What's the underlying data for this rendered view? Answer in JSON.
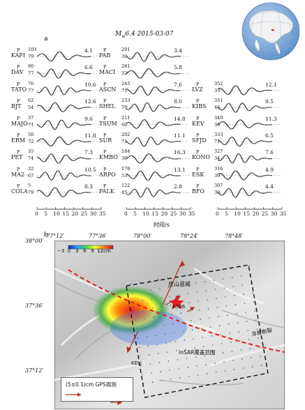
{
  "panel_a": {
    "label": "a",
    "title_prefix": "M",
    "title_sub": "w",
    "title_rest": "6.4 2015-03-07",
    "p_label": "P",
    "columns": [
      [
        {
          "code": "KAPI",
          "az": "103",
          "dist": "79",
          "amp": "4.1"
        },
        {
          "code": "DAV",
          "az": "90",
          "dist": "77",
          "amp": "6.6"
        },
        {
          "code": "TATO",
          "az": "76",
          "dist": "77",
          "amp": "10.6"
        },
        {
          "code": "BJT",
          "az": "62",
          "dist": "54",
          "amp": "12.6"
        },
        {
          "code": "MAJO",
          "az": "37",
          "dist": "71",
          "amp": "9.6"
        },
        {
          "code": "ERM",
          "az": "50",
          "dist": "72",
          "amp": "11.8"
        },
        {
          "code": "PET",
          "az": "35",
          "dist": "74",
          "amp": "7.3"
        },
        {
          "code": "MA2",
          "az": "32",
          "dist": "67",
          "amp": "10.5"
        },
        {
          "code": "COLA",
          "az": "5",
          "dist": "79",
          "amp": "8.3"
        }
      ],
      [
        {
          "code": "PAB",
          "az": "291",
          "dist": "39",
          "amp": "3.4"
        },
        {
          "code": "MACI",
          "az": "281",
          "dist": "32",
          "amp": "5.8"
        },
        {
          "code": "ASCN",
          "az": "245",
          "dist": "71",
          "amp": "7.6"
        },
        {
          "code": "SHEL",
          "az": "233",
          "dist": "70",
          "amp": "8.0"
        },
        {
          "code": "TSUM",
          "az": "211",
          "dist": "60",
          "amp": "14.8"
        },
        {
          "code": "SUR",
          "az": "202",
          "dist": "71",
          "amp": "11.1"
        },
        {
          "code": "KMBO",
          "az": "184",
          "dist": "36",
          "amp": "16.3"
        },
        {
          "code": "ARPO",
          "az": "178",
          "dist": "53",
          "amp": "13.1"
        },
        {
          "code": "PALK",
          "az": "122",
          "dist": "45",
          "amp": "2.8"
        }
      ],
      [
        {
          "code": "LVZ",
          "az": "352",
          "dist": "33",
          "amp": "12.1"
        },
        {
          "code": "KIBS",
          "az": "351",
          "dist": "46",
          "amp": "9.5"
        },
        {
          "code": "KEV",
          "az": "349",
          "dist": "36",
          "amp": "11.3"
        },
        {
          "code": "SFJD",
          "az": "333",
          "dist": "71",
          "amp": "6.5"
        },
        {
          "code": "KONO",
          "az": "327",
          "dist": "34",
          "amp": "7.6"
        },
        {
          "code": "ESK",
          "az": "316",
          "dist": "39",
          "amp": "4.9"
        },
        {
          "code": "BFO",
          "az": "307",
          "dist": "30",
          "amp": "4.4"
        }
      ]
    ],
    "x_ticks": [
      "0",
      "5",
      "10",
      "15",
      "20",
      "25",
      "30",
      "35"
    ],
    "x_label": "时间/s"
  },
  "panel_b": {
    "label": "b",
    "lon_ticks": [
      "77°12′",
      "77°36′",
      "78°00′",
      "78°24′",
      "78°48′"
    ],
    "lat_ticks": [
      "38°00′",
      "37°36′",
      "37°12′"
    ],
    "colorbar_ticks": [
      "−3",
      "0",
      "3",
      "6",
      "9",
      "12cm"
    ],
    "county": "皮山县城",
    "station_a506": "A506",
    "station_keli": "KELI",
    "insar_label": "InSAR覆盖范围",
    "fault_label": "泽普断裂",
    "gps_legend": "(5±0.1)cm GPS观测",
    "colors": {
      "fault": "#e02020",
      "gps_arrow": "#b03020",
      "star": "#e02020",
      "box": "#111111"
    }
  }
}
